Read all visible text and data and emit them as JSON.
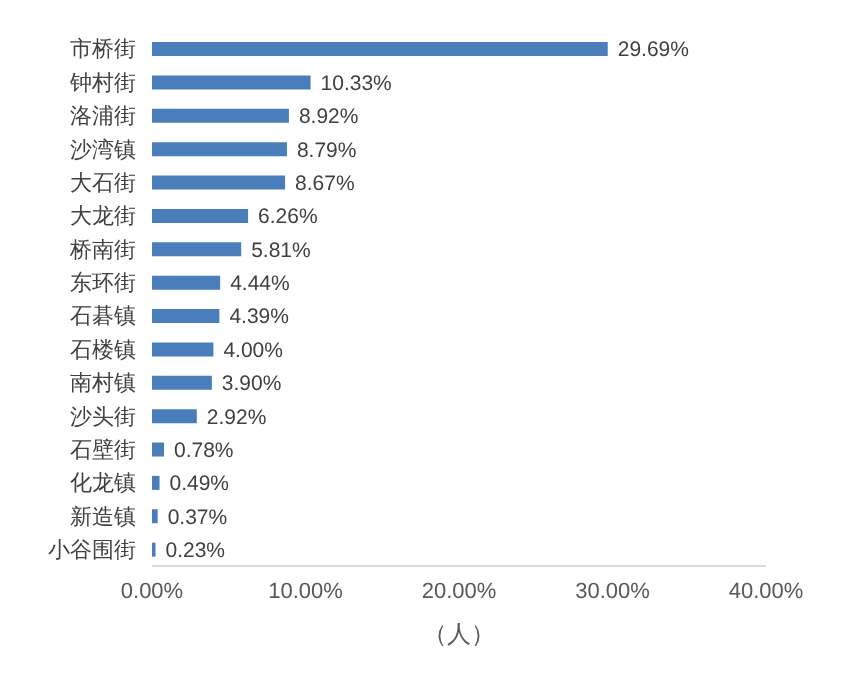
{
  "chart_data": {
    "type": "bar",
    "orientation": "horizontal",
    "xlabel": "（人）",
    "categories": [
      "市桥街",
      "钟村街",
      "洛浦街",
      "沙湾镇",
      "大石街",
      "大龙街",
      "桥南街",
      "东环街",
      "石碁镇",
      "石楼镇",
      "南村镇",
      "沙头街",
      "石壁街",
      "化龙镇",
      "新造镇",
      "小谷围街"
    ],
    "values": [
      29.69,
      10.33,
      8.92,
      8.79,
      8.67,
      6.26,
      5.81,
      4.44,
      4.39,
      4.0,
      3.9,
      2.92,
      0.78,
      0.49,
      0.37,
      0.23
    ],
    "value_labels": [
      "29.69%",
      "10.33%",
      "8.92%",
      "8.79%",
      "8.67%",
      "6.26%",
      "5.81%",
      "4.44%",
      "4.39%",
      "4.00%",
      "3.90%",
      "2.92%",
      "0.78%",
      "0.49%",
      "0.37%",
      "0.23%"
    ],
    "color": "#4a7ebb",
    "xlim": [
      0,
      40
    ],
    "xticks": [
      {
        "value": 0,
        "label": "0.00%"
      },
      {
        "value": 10,
        "label": "10.00%"
      },
      {
        "value": 20,
        "label": "20.00%"
      },
      {
        "value": 30,
        "label": "30.00%"
      },
      {
        "value": 40,
        "label": "40.00%"
      }
    ],
    "grid": false,
    "legend": false
  }
}
